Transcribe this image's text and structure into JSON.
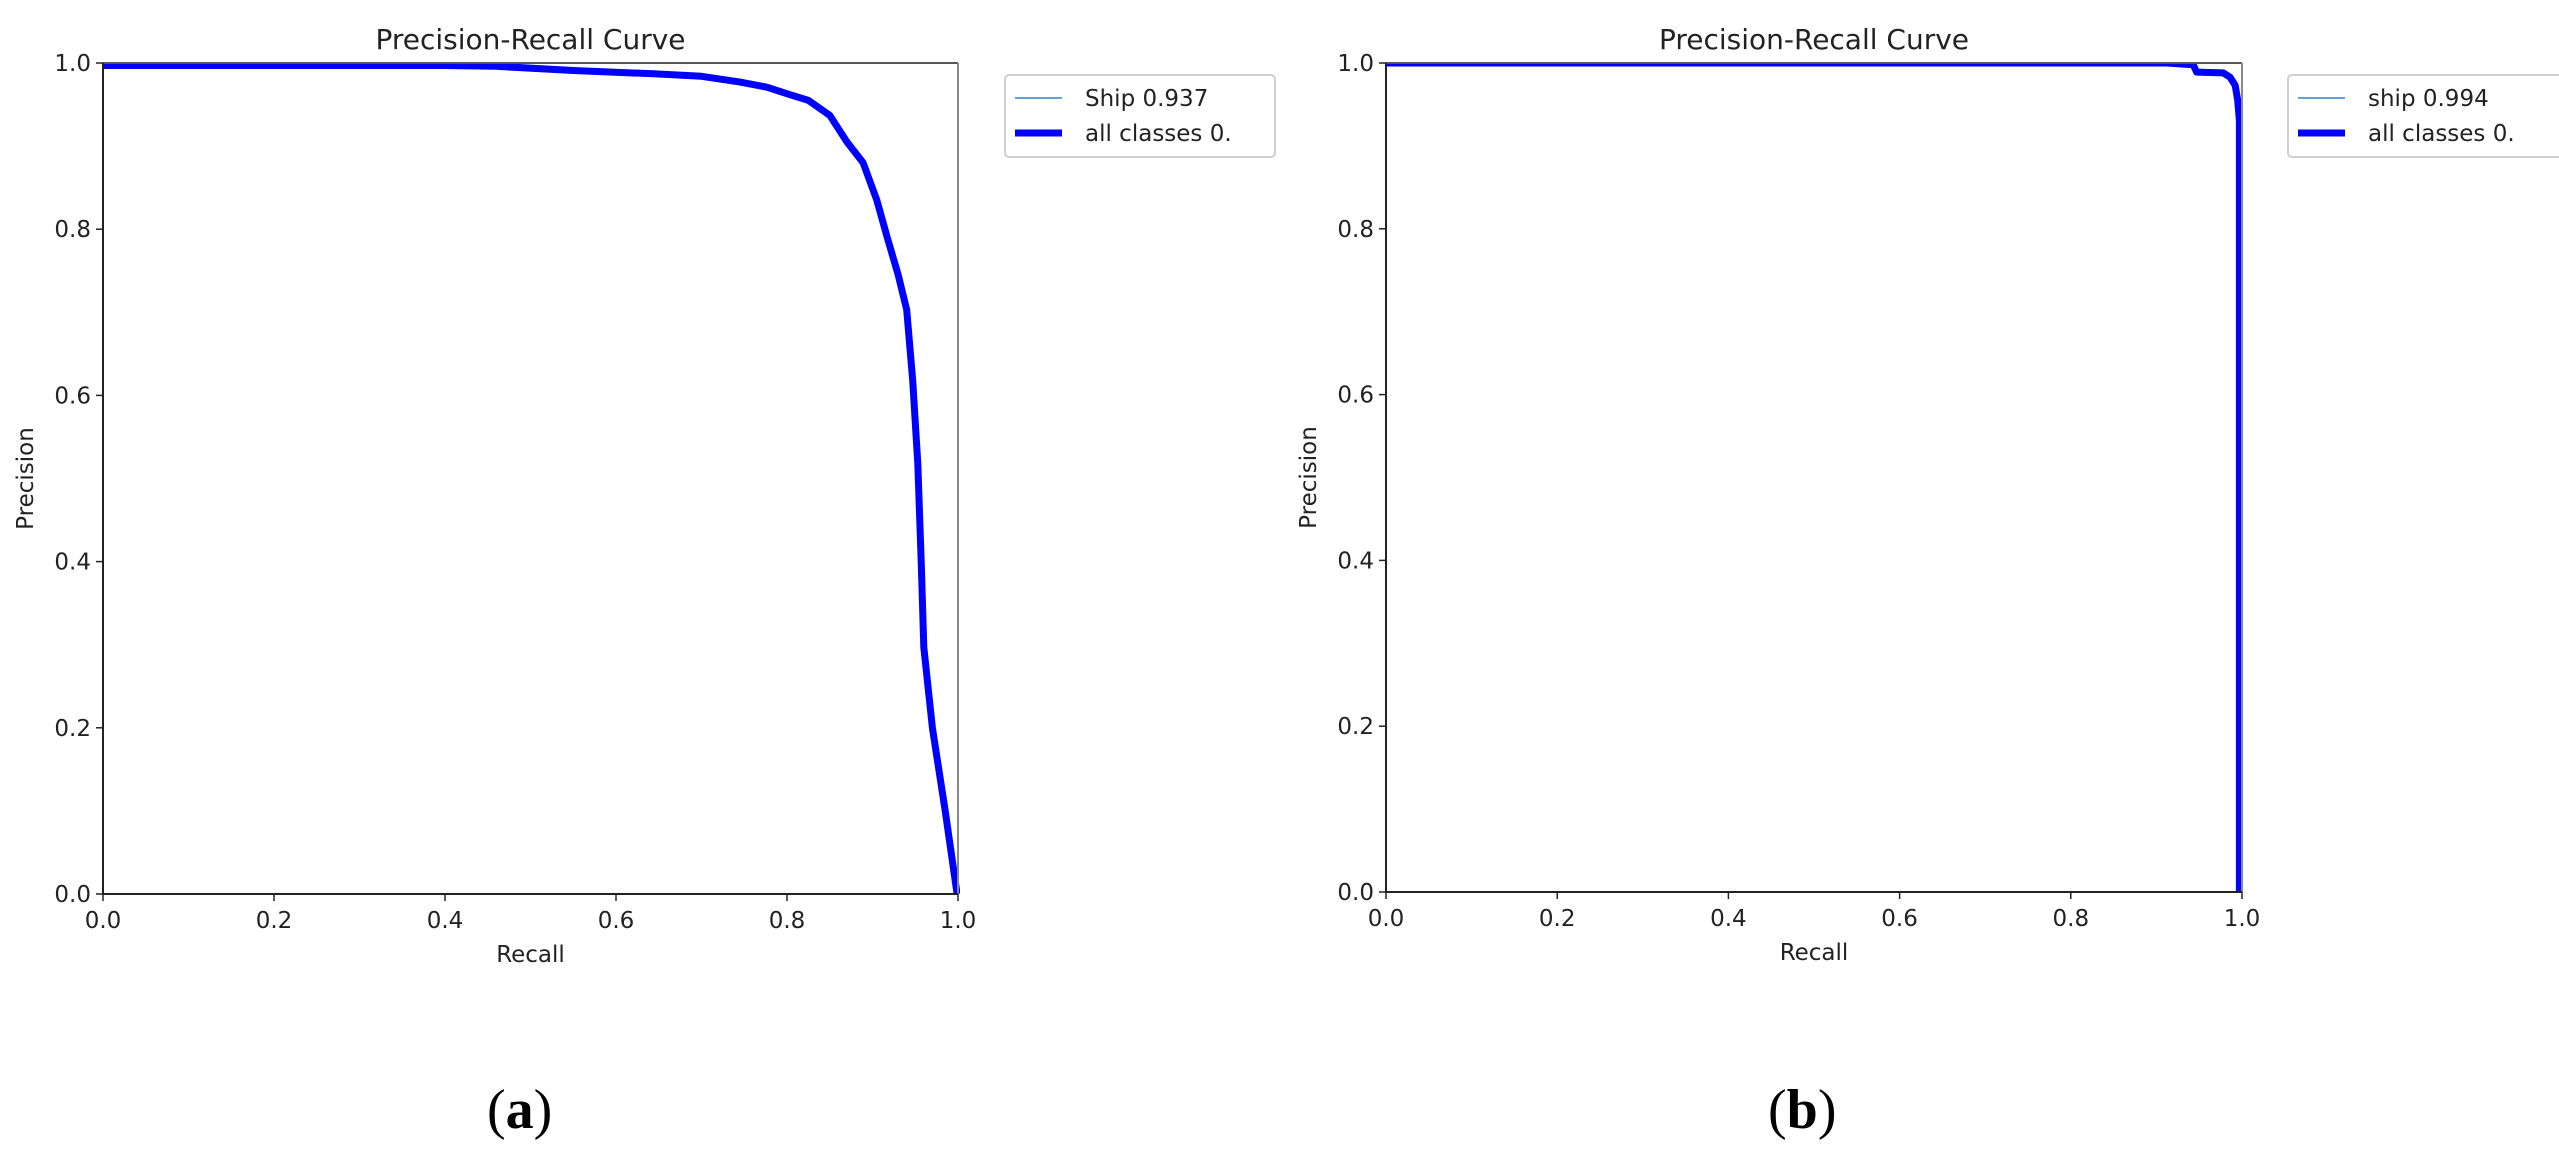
{
  "captions": {
    "a_open": "(",
    "a_letter": "a",
    "a_close": ")",
    "b_open": "(",
    "b_letter": "b",
    "b_close": ")"
  },
  "colors": {
    "all_classes_line": "#0000ff",
    "class_line": "#5fa3d9",
    "axis": "#222222",
    "legend_border": "#d0d0d0"
  },
  "chart_data": [
    {
      "id": "a",
      "type": "line",
      "title": "Precision-Recall Curve",
      "xlabel": "Recall",
      "ylabel": "Precision",
      "xlim": [
        0.0,
        1.0
      ],
      "ylim": [
        0.0,
        1.0
      ],
      "xticks": [
        "0.0",
        "0.2",
        "0.4",
        "0.6",
        "0.8",
        "1.0"
      ],
      "yticks": [
        "0.0",
        "0.2",
        "0.4",
        "0.6",
        "0.8",
        "1.0"
      ],
      "grid": false,
      "legend_position": "outside upper right",
      "legend": [
        {
          "label": "Ship 0.937",
          "style": "thin",
          "color": "#5fa3d9"
        },
        {
          "label": "all classes 0.",
          "style": "thick",
          "color": "#0000ff"
        }
      ],
      "series": [
        {
          "name": "all classes",
          "x": [
            0.0,
            0.2,
            0.4,
            0.46,
            0.55,
            0.644,
            0.7,
            0.745,
            0.776,
            0.803,
            0.825,
            0.85,
            0.87,
            0.889,
            0.905,
            0.917,
            0.93,
            0.94,
            0.947,
            0.953,
            0.957,
            0.96,
            0.97,
            0.985,
            0.999
          ],
          "y": [
            0.997,
            0.997,
            0.997,
            0.996,
            0.991,
            0.987,
            0.984,
            0.977,
            0.971,
            0.962,
            0.955,
            0.937,
            0.905,
            0.88,
            0.835,
            0.791,
            0.745,
            0.703,
            0.618,
            0.518,
            0.4,
            0.297,
            0.2,
            0.1,
            0.0
          ]
        }
      ]
    },
    {
      "id": "b",
      "type": "line",
      "title": "Precision-Recall Curve",
      "xlabel": "Recall",
      "ylabel": "Precision",
      "xlim": [
        0.0,
        1.0
      ],
      "ylim": [
        0.0,
        1.0
      ],
      "xticks": [
        "0.0",
        "0.2",
        "0.4",
        "0.6",
        "0.8",
        "1.0"
      ],
      "yticks": [
        "0.0",
        "0.2",
        "0.4",
        "0.6",
        "0.8",
        "1.0"
      ],
      "grid": false,
      "legend_position": "outside upper right",
      "legend": [
        {
          "label": "ship 0.994",
          "style": "thin",
          "color": "#5fa3d9"
        },
        {
          "label": "all classes 0.",
          "style": "thick",
          "color": "#0000ff"
        }
      ],
      "series": [
        {
          "name": "all classes",
          "x": [
            0.0,
            0.5,
            0.912,
            0.943,
            0.947,
            0.978,
            0.986,
            0.992,
            0.995,
            0.997,
            0.997,
            0.997
          ],
          "y": [
            1.0,
            1.0,
            1.0,
            0.998,
            0.989,
            0.988,
            0.983,
            0.973,
            0.955,
            0.93,
            0.5,
            0.0
          ]
        }
      ]
    }
  ]
}
